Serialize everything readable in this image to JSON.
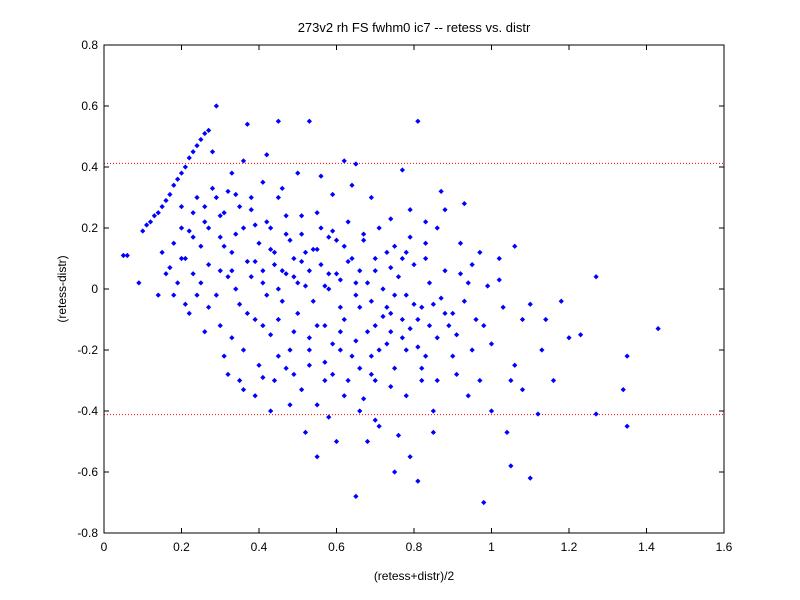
{
  "chart_data": {
    "type": "scatter",
    "title": "273v2 rh FS fwhm0 ic7 -- retess vs. distr",
    "xlabel": "(retess+distr)/2",
    "ylabel": "(retess-distr)",
    "xlim": [
      0,
      1.6
    ],
    "ylim": [
      -0.8,
      0.8
    ],
    "xticks": [
      0,
      0.2,
      0.4,
      0.6,
      0.8,
      1,
      1.2,
      1.4,
      1.6
    ],
    "xtick_labels": [
      "0",
      "0.2",
      "0.4",
      "0.6",
      "0.8",
      "1",
      "1.2",
      "1.4",
      "1.6"
    ],
    "yticks": [
      -0.8,
      -0.6,
      -0.4,
      -0.2,
      0,
      0.2,
      0.4,
      0.6,
      0.8
    ],
    "ytick_labels": [
      "-0.8",
      "-0.6",
      "-0.4",
      "-0.2",
      "0",
      "0.2",
      "0.4",
      "0.6",
      "0.8"
    ],
    "grid": false,
    "reference_lines": [
      0.412,
      -0.412
    ],
    "colors": {
      "points": "#0000ff",
      "reference_lines": "#ff0000",
      "axes": "#000000"
    },
    "series": [
      {
        "points": [
          [
            0.06,
            0.11
          ],
          [
            0.09,
            0.02
          ],
          [
            0.1,
            0.19
          ],
          [
            0.11,
            0.21
          ],
          [
            0.12,
            0.22
          ],
          [
            0.13,
            0.24
          ],
          [
            0.14,
            0.25
          ],
          [
            0.15,
            0.27
          ],
          [
            0.16,
            0.29
          ],
          [
            0.17,
            0.31
          ],
          [
            0.18,
            0.34
          ],
          [
            0.19,
            0.36
          ],
          [
            0.2,
            0.38
          ],
          [
            0.21,
            0.4
          ],
          [
            0.22,
            0.43
          ],
          [
            0.23,
            0.45
          ],
          [
            0.24,
            0.47
          ],
          [
            0.25,
            0.49
          ],
          [
            0.26,
            0.51
          ],
          [
            0.27,
            0.52
          ],
          [
            0.29,
            0.6
          ],
          [
            0.37,
            0.54
          ],
          [
            0.45,
            0.55
          ],
          [
            0.53,
            0.55
          ],
          [
            0.81,
            0.55
          ],
          [
            0.62,
            0.42
          ],
          [
            0.65,
            0.41
          ],
          [
            0.77,
            0.39
          ],
          [
            0.36,
            0.42
          ],
          [
            0.42,
            0.44
          ],
          [
            0.33,
            0.38
          ],
          [
            0.28,
            0.45
          ],
          [
            0.14,
            -0.02
          ],
          [
            0.05,
            0.11
          ],
          [
            0.15,
            0.12
          ],
          [
            0.17,
            0.07
          ],
          [
            0.18,
            0.15
          ],
          [
            0.19,
            0.02
          ],
          [
            0.2,
            0.27
          ],
          [
            0.21,
            0.1
          ],
          [
            0.22,
            0.19
          ],
          [
            0.23,
            0.05
          ],
          [
            0.24,
            0.3
          ],
          [
            0.25,
            0.14
          ],
          [
            0.26,
            0.22
          ],
          [
            0.27,
            0.08
          ],
          [
            0.28,
            0.33
          ],
          [
            0.29,
            -0.02
          ],
          [
            0.3,
            0.17
          ],
          [
            0.31,
            0.25
          ],
          [
            0.32,
            0.04
          ],
          [
            0.33,
            0.12
          ],
          [
            0.34,
            0.31
          ],
          [
            0.35,
            -0.05
          ],
          [
            0.36,
            0.2
          ],
          [
            0.37,
            0.09
          ],
          [
            0.38,
            0.26
          ],
          [
            0.39,
            -0.1
          ],
          [
            0.4,
            0.15
          ],
          [
            0.41,
            0.02
          ],
          [
            0.42,
            0.22
          ],
          [
            0.43,
            -0.15
          ],
          [
            0.44,
            0.08
          ],
          [
            0.45,
            0.3
          ],
          [
            0.46,
            -0.04
          ],
          [
            0.47,
            0.18
          ],
          [
            0.48,
            -0.2
          ],
          [
            0.49,
            0.1
          ],
          [
            0.5,
            -0.08
          ],
          [
            0.51,
            0.24
          ],
          [
            0.52,
            0.01
          ],
          [
            0.53,
            -0.25
          ],
          [
            0.54,
            0.13
          ],
          [
            0.55,
            -0.12
          ],
          [
            0.56,
            0.2
          ],
          [
            0.57,
            -0.3
          ],
          [
            0.58,
            0.05
          ],
          [
            0.59,
            -0.18
          ],
          [
            0.6,
            0.16
          ],
          [
            0.61,
            -0.06
          ],
          [
            0.62,
            -0.35
          ],
          [
            0.63,
            0.09
          ],
          [
            0.64,
            -0.22
          ],
          [
            0.65,
            0.02
          ],
          [
            0.66,
            -0.4
          ],
          [
            0.67,
            0.18
          ],
          [
            0.68,
            -0.14
          ],
          [
            0.69,
            -0.28
          ],
          [
            0.7,
            0.06
          ],
          [
            0.71,
            -0.45
          ],
          [
            0.72,
            -0.09
          ],
          [
            0.73,
            0.12
          ],
          [
            0.74,
            -0.32
          ],
          [
            0.75,
            -0.02
          ],
          [
            0.76,
            -0.48
          ],
          [
            0.77,
            0.1
          ],
          [
            0.78,
            -0.2
          ],
          [
            0.79,
            -0.55
          ],
          [
            0.8,
            -0.05
          ],
          [
            0.81,
            -0.63
          ],
          [
            0.82,
            -0.3
          ],
          [
            0.83,
            0.15
          ],
          [
            0.84,
            -0.12
          ],
          [
            0.85,
            -0.4
          ],
          [
            0.86,
            0.2
          ],
          [
            0.87,
            0.32
          ],
          [
            0.88,
            -0.08
          ],
          [
            0.9,
            -0.22
          ],
          [
            0.92,
            0.05
          ],
          [
            0.94,
            -0.35
          ],
          [
            0.96,
            -0.1
          ],
          [
            0.98,
            -0.7
          ],
          [
            1.0,
            -0.18
          ],
          [
            1.02,
            0.03
          ],
          [
            1.04,
            -0.47
          ],
          [
            1.05,
            -0.58
          ],
          [
            1.06,
            -0.25
          ],
          [
            1.08,
            -0.33
          ],
          [
            1.1,
            -0.62
          ],
          [
            1.12,
            -0.41
          ],
          [
            1.14,
            -0.1
          ],
          [
            1.18,
            -0.04
          ],
          [
            1.2,
            -0.16
          ],
          [
            1.23,
            -0.15
          ],
          [
            1.27,
            0.04
          ],
          [
            1.27,
            -0.41
          ],
          [
            1.34,
            -0.33
          ],
          [
            1.35,
            -0.45
          ],
          [
            1.35,
            -0.22
          ],
          [
            1.43,
            -0.13
          ],
          [
            0.55,
            -0.55
          ],
          [
            0.65,
            -0.68
          ],
          [
            0.6,
            -0.5
          ],
          [
            0.7,
            -0.43
          ],
          [
            0.75,
            -0.6
          ],
          [
            0.85,
            -0.47
          ],
          [
            0.58,
            -0.42
          ],
          [
            0.68,
            -0.5
          ],
          [
            0.52,
            -0.47
          ],
          [
            0.48,
            -0.38
          ],
          [
            0.44,
            -0.3
          ],
          [
            0.4,
            -0.25
          ],
          [
            0.36,
            -0.2
          ],
          [
            0.33,
            -0.16
          ],
          [
            0.3,
            -0.12
          ],
          [
            0.27,
            -0.06
          ],
          [
            0.24,
            -0.02
          ],
          [
            0.22,
            -0.08
          ],
          [
            0.26,
            -0.14
          ],
          [
            0.31,
            -0.22
          ],
          [
            0.35,
            -0.3
          ],
          [
            0.39,
            -0.35
          ],
          [
            0.43,
            -0.4
          ],
          [
            0.47,
            -0.26
          ],
          [
            0.51,
            -0.33
          ],
          [
            0.55,
            -0.38
          ],
          [
            0.59,
            -0.28
          ],
          [
            0.63,
            -0.3
          ],
          [
            0.67,
            -0.36
          ],
          [
            0.71,
            -0.2
          ],
          [
            0.75,
            -0.26
          ],
          [
            0.79,
            -0.13
          ],
          [
            0.83,
            -0.22
          ],
          [
            0.87,
            -0.03
          ],
          [
            0.91,
            -0.15
          ],
          [
            0.95,
            0.08
          ],
          [
            0.99,
            0.01
          ],
          [
            1.03,
            -0.06
          ],
          [
            0.92,
            0.15
          ],
          [
            0.97,
            0.12
          ],
          [
            1.02,
            0.1
          ],
          [
            1.06,
            0.14
          ],
          [
            0.88,
            0.26
          ],
          [
            0.93,
            0.28
          ],
          [
            0.83,
            0.22
          ],
          [
            0.79,
            0.26
          ],
          [
            0.74,
            0.23
          ],
          [
            0.69,
            0.3
          ],
          [
            0.64,
            0.34
          ],
          [
            0.59,
            0.31
          ],
          [
            0.56,
            0.37
          ],
          [
            0.5,
            0.38
          ],
          [
            0.46,
            0.33
          ],
          [
            0.41,
            0.35
          ],
          [
            0.38,
            0.3
          ],
          [
            0.35,
            0.27
          ],
          [
            0.32,
            0.32
          ],
          [
            0.29,
            0.3
          ],
          [
            0.3,
            0.06
          ],
          [
            0.34,
            0.0
          ],
          [
            0.38,
            0.04
          ],
          [
            0.42,
            -0.02
          ],
          [
            0.46,
            0.06
          ],
          [
            0.5,
            0.02
          ],
          [
            0.54,
            -0.04
          ],
          [
            0.58,
            0.0
          ],
          [
            0.62,
            -0.1
          ],
          [
            0.66,
            -0.06
          ],
          [
            0.7,
            -0.12
          ],
          [
            0.74,
            -0.08
          ],
          [
            0.78,
            -0.02
          ],
          [
            0.82,
            -0.06
          ],
          [
            0.86,
            -0.16
          ],
          [
            0.9,
            -0.08
          ],
          [
            0.94,
            0.02
          ],
          [
            0.98,
            -0.12
          ],
          [
            0.44,
            0.12
          ],
          [
            0.48,
            0.16
          ],
          [
            0.52,
            0.12
          ],
          [
            0.56,
            0.08
          ],
          [
            0.6,
            0.05
          ],
          [
            0.64,
            0.1
          ],
          [
            0.68,
            0.02
          ],
          [
            0.72,
            0.0
          ],
          [
            0.76,
            0.04
          ],
          [
            0.8,
            0.08
          ],
          [
            0.84,
            0.02
          ],
          [
            0.88,
            0.06
          ],
          [
            0.37,
            -0.08
          ],
          [
            0.41,
            -0.12
          ],
          [
            0.45,
            -0.1
          ],
          [
            0.49,
            -0.14
          ],
          [
            0.53,
            -0.16
          ],
          [
            0.57,
            -0.12
          ],
          [
            0.61,
            -0.2
          ],
          [
            0.65,
            -0.17
          ],
          [
            0.69,
            -0.22
          ],
          [
            0.73,
            -0.18
          ],
          [
            0.77,
            -0.16
          ],
          [
            0.81,
            -0.19
          ],
          [
            0.25,
            0.02
          ],
          [
            0.21,
            -0.05
          ],
          [
            0.18,
            -0.02
          ],
          [
            0.16,
            0.05
          ],
          [
            0.2,
            0.1
          ],
          [
            0.23,
            0.17
          ],
          [
            0.27,
            0.2
          ],
          [
            0.31,
            0.14
          ],
          [
            0.34,
            0.18
          ],
          [
            0.39,
            0.21
          ],
          [
            0.43,
            0.2
          ],
          [
            0.47,
            0.24
          ],
          [
            0.51,
            0.18
          ],
          [
            0.55,
            0.25
          ],
          [
            0.59,
            0.19
          ],
          [
            0.63,
            0.22
          ],
          [
            0.67,
            0.16
          ],
          [
            0.71,
            0.2
          ],
          [
            0.75,
            0.14
          ],
          [
            0.79,
            0.17
          ],
          [
            0.83,
            0.1
          ],
          [
            0.32,
            -0.28
          ],
          [
            0.36,
            -0.33
          ],
          [
            0.41,
            -0.29
          ],
          [
            0.45,
            -0.22
          ],
          [
            0.49,
            -0.28
          ],
          [
            0.53,
            -0.2
          ],
          [
            0.57,
            -0.24
          ],
          [
            0.61,
            -0.14
          ],
          [
            0.66,
            -0.26
          ],
          [
            0.7,
            -0.3
          ],
          [
            0.74,
            -0.14
          ],
          [
            0.78,
            -0.35
          ],
          [
            0.82,
            -0.26
          ],
          [
            0.86,
            -0.3
          ],
          [
            0.91,
            -0.28
          ],
          [
            0.95,
            -0.2
          ],
          [
            0.41,
            0.06
          ],
          [
            0.45,
            0.0
          ],
          [
            0.49,
            0.04
          ],
          [
            0.53,
            0.06
          ],
          [
            0.57,
            0.01
          ],
          [
            0.61,
            0.03
          ],
          [
            0.65,
            -0.02
          ],
          [
            0.69,
            -0.04
          ],
          [
            0.73,
            -0.06
          ],
          [
            0.77,
            -0.1
          ],
          [
            0.81,
            -0.1
          ],
          [
            0.85,
            -0.05
          ],
          [
            0.89,
            -0.12
          ],
          [
            0.93,
            -0.04
          ],
          [
            1.08,
            -0.1
          ],
          [
            1.13,
            -0.2
          ],
          [
            1.16,
            -0.3
          ],
          [
            1.0,
            -0.4
          ],
          [
            1.05,
            -0.3
          ],
          [
            1.1,
            -0.05
          ],
          [
            0.97,
            -0.3
          ],
          [
            0.39,
            0.09
          ],
          [
            0.43,
            0.13
          ],
          [
            0.47,
            0.05
          ],
          [
            0.51,
            0.09
          ],
          [
            0.55,
            0.13
          ],
          [
            0.58,
            0.17
          ],
          [
            0.62,
            0.14
          ],
          [
            0.66,
            0.06
          ],
          [
            0.7,
            0.1
          ],
          [
            0.74,
            0.07
          ],
          [
            0.78,
            0.12
          ],
          [
            0.33,
            0.06
          ],
          [
            0.3,
            0.24
          ],
          [
            0.26,
            0.27
          ],
          [
            0.23,
            0.25
          ],
          [
            0.2,
            0.2
          ]
        ]
      }
    ]
  }
}
